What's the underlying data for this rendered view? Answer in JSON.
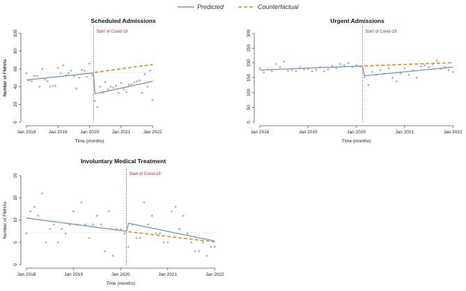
{
  "legend": {
    "predicted_label": "Predicted",
    "counterfactual_label": "Counterfactual"
  },
  "colors": {
    "predicted": "#6f9bc4",
    "counterfactual": "#e08a1e",
    "points": "#b5b5b5",
    "covid_line": "#c0392b",
    "reference": "#cccccc"
  },
  "chart_data": [
    {
      "type": "scatter",
      "title": "Scheduled Admissions",
      "xlabel": "Time (months)",
      "ylabel": "Number of FMHAs",
      "ylim": [
        0,
        100
      ],
      "yticks": [
        0,
        20,
        40,
        60,
        80,
        100
      ],
      "xlim": [
        0,
        49
      ],
      "xticks": [
        0,
        12,
        24,
        36,
        48
      ],
      "xtick_labels": [
        "Jan 2018",
        "Jan 2019",
        "Jan 2020",
        "Jan 2021",
        "Jan 2022"
      ],
      "covid_x": 26,
      "covid_label": "Start of Covid-19",
      "reference_y": 56,
      "points": [
        {
          "x": 0,
          "y": 55
        },
        {
          "x": 1,
          "y": 47
        },
        {
          "x": 2,
          "y": 46
        },
        {
          "x": 3,
          "y": 52
        },
        {
          "x": 4,
          "y": 52
        },
        {
          "x": 5,
          "y": 40
        },
        {
          "x": 6,
          "y": 60
        },
        {
          "x": 7,
          "y": 48
        },
        {
          "x": 8,
          "y": 46
        },
        {
          "x": 9,
          "y": 40
        },
        {
          "x": 10,
          "y": 41
        },
        {
          "x": 11,
          "y": 41
        },
        {
          "x": 12,
          "y": 61
        },
        {
          "x": 13,
          "y": 55
        },
        {
          "x": 14,
          "y": 64
        },
        {
          "x": 15,
          "y": 53
        },
        {
          "x": 16,
          "y": 55
        },
        {
          "x": 17,
          "y": 58
        },
        {
          "x": 18,
          "y": 52
        },
        {
          "x": 19,
          "y": 38
        },
        {
          "x": 20,
          "y": 50
        },
        {
          "x": 21,
          "y": 59
        },
        {
          "x": 22,
          "y": 58
        },
        {
          "x": 23,
          "y": 51
        },
        {
          "x": 24,
          "y": 66
        },
        {
          "x": 25,
          "y": 53
        },
        {
          "x": 26,
          "y": 24
        },
        {
          "x": 27,
          "y": 17
        },
        {
          "x": 28,
          "y": 40
        },
        {
          "x": 29,
          "y": 33
        },
        {
          "x": 30,
          "y": 45
        },
        {
          "x": 31,
          "y": 37
        },
        {
          "x": 32,
          "y": 40
        },
        {
          "x": 33,
          "y": 39
        },
        {
          "x": 34,
          "y": 41
        },
        {
          "x": 35,
          "y": 33
        },
        {
          "x": 36,
          "y": 44
        },
        {
          "x": 37,
          "y": 37
        },
        {
          "x": 38,
          "y": 34
        },
        {
          "x": 39,
          "y": 42
        },
        {
          "x": 40,
          "y": 43
        },
        {
          "x": 41,
          "y": 45
        },
        {
          "x": 42,
          "y": 46
        },
        {
          "x": 43,
          "y": 47
        },
        {
          "x": 44,
          "y": 33
        },
        {
          "x": 45,
          "y": 54
        },
        {
          "x": 46,
          "y": 40
        },
        {
          "x": 47,
          "y": 58
        },
        {
          "x": 48,
          "y": 25
        }
      ],
      "predicted_pre": [
        {
          "x": 0,
          "y": 47.5
        },
        {
          "x": 25.5,
          "y": 55.5
        }
      ],
      "predicted_post": [
        {
          "x": 26,
          "y": 32
        },
        {
          "x": 48,
          "y": 46
        }
      ],
      "counterfactual": [
        {
          "x": 26,
          "y": 56
        },
        {
          "x": 48,
          "y": 65
        }
      ]
    },
    {
      "type": "scatter",
      "title": "Urgent Admissions",
      "xlabel": "Time (months)",
      "ylabel": "Number of FMHAs",
      "ylim": [
        0,
        300
      ],
      "yticks": [
        0,
        50,
        100,
        150,
        200,
        250,
        300
      ],
      "xlim": [
        0,
        49
      ],
      "xticks": [
        0,
        12,
        24,
        36,
        48
      ],
      "xtick_labels": [
        "Jan 2018",
        "Jan 2019",
        "Jan 2020",
        "Jan 2021",
        "Jan 2022"
      ],
      "covid_x": 26,
      "covid_label": "Start of Covid-19",
      "reference_y": 188,
      "points": [
        {
          "x": 0,
          "y": 182
        },
        {
          "x": 1,
          "y": 168
        },
        {
          "x": 2,
          "y": 178
        },
        {
          "x": 3,
          "y": 172
        },
        {
          "x": 4,
          "y": 196
        },
        {
          "x": 5,
          "y": 186
        },
        {
          "x": 6,
          "y": 205
        },
        {
          "x": 7,
          "y": 174
        },
        {
          "x": 8,
          "y": 176
        },
        {
          "x": 9,
          "y": 172
        },
        {
          "x": 10,
          "y": 186
        },
        {
          "x": 11,
          "y": 178
        },
        {
          "x": 12,
          "y": 180
        },
        {
          "x": 13,
          "y": 172
        },
        {
          "x": 14,
          "y": 176
        },
        {
          "x": 15,
          "y": 186
        },
        {
          "x": 16,
          "y": 172
        },
        {
          "x": 17,
          "y": 178
        },
        {
          "x": 18,
          "y": 190
        },
        {
          "x": 19,
          "y": 182
        },
        {
          "x": 20,
          "y": 196
        },
        {
          "x": 21,
          "y": 192
        },
        {
          "x": 22,
          "y": 200
        },
        {
          "x": 23,
          "y": 186
        },
        {
          "x": 24,
          "y": 192
        },
        {
          "x": 25,
          "y": 188
        },
        {
          "x": 26,
          "y": 152
        },
        {
          "x": 27,
          "y": 125
        },
        {
          "x": 28,
          "y": 170
        },
        {
          "x": 29,
          "y": 160
        },
        {
          "x": 30,
          "y": 176
        },
        {
          "x": 31,
          "y": 164
        },
        {
          "x": 32,
          "y": 182
        },
        {
          "x": 33,
          "y": 150
        },
        {
          "x": 34,
          "y": 138
        },
        {
          "x": 35,
          "y": 165
        },
        {
          "x": 36,
          "y": 182
        },
        {
          "x": 37,
          "y": 160
        },
        {
          "x": 38,
          "y": 176
        },
        {
          "x": 39,
          "y": 150
        },
        {
          "x": 40,
          "y": 188
        },
        {
          "x": 41,
          "y": 192
        },
        {
          "x": 42,
          "y": 186
        },
        {
          "x": 43,
          "y": 196
        },
        {
          "x": 44,
          "y": 208
        },
        {
          "x": 45,
          "y": 180
        },
        {
          "x": 46,
          "y": 186
        },
        {
          "x": 47,
          "y": 176
        },
        {
          "x": 48,
          "y": 170
        }
      ],
      "predicted_pre": [
        {
          "x": 0,
          "y": 176
        },
        {
          "x": 25.5,
          "y": 190
        }
      ],
      "predicted_post": [
        {
          "x": 26,
          "y": 157
        },
        {
          "x": 48,
          "y": 186
        }
      ],
      "counterfactual": [
        {
          "x": 26,
          "y": 190
        },
        {
          "x": 48,
          "y": 201
        }
      ]
    },
    {
      "type": "scatter",
      "title": "Involuntary Medical Treatment",
      "xlabel": "Time (months)",
      "ylabel": "Number of FMHAs",
      "ylim": [
        0,
        20
      ],
      "yticks": [
        0,
        5,
        10,
        15,
        20
      ],
      "xlim": [
        0,
        49
      ],
      "xticks": [
        0,
        12,
        24,
        36,
        48
      ],
      "xtick_labels": [
        "Jan 2018",
        "Jan 2019",
        "Jan 2020",
        "Jan 2021",
        "Jan 2022"
      ],
      "covid_x": 26,
      "covid_label": "Start of Covid-19",
      "reference_y": 7.2,
      "points": [
        {
          "x": 0,
          "y": 7
        },
        {
          "x": 1,
          "y": 12
        },
        {
          "x": 2,
          "y": 13
        },
        {
          "x": 3,
          "y": 11
        },
        {
          "x": 4,
          "y": 16
        },
        {
          "x": 5,
          "y": 5
        },
        {
          "x": 6,
          "y": 8
        },
        {
          "x": 7,
          "y": 9
        },
        {
          "x": 8,
          "y": 5
        },
        {
          "x": 9,
          "y": 8
        },
        {
          "x": 10,
          "y": 7
        },
        {
          "x": 11,
          "y": 9
        },
        {
          "x": 12,
          "y": 12
        },
        {
          "x": 13,
          "y": 9
        },
        {
          "x": 14,
          "y": 14
        },
        {
          "x": 15,
          "y": 9
        },
        {
          "x": 16,
          "y": 6
        },
        {
          "x": 17,
          "y": 9
        },
        {
          "x": 18,
          "y": 11
        },
        {
          "x": 19,
          "y": 9
        },
        {
          "x": 20,
          "y": 3
        },
        {
          "x": 21,
          "y": 12
        },
        {
          "x": 22,
          "y": 2
        },
        {
          "x": 23,
          "y": 8
        },
        {
          "x": 24,
          "y": 8
        },
        {
          "x": 25,
          "y": 7
        },
        {
          "x": 26,
          "y": 4
        },
        {
          "x": 27,
          "y": 9
        },
        {
          "x": 28,
          "y": 6
        },
        {
          "x": 29,
          "y": 6
        },
        {
          "x": 30,
          "y": 14
        },
        {
          "x": 31,
          "y": 9
        },
        {
          "x": 32,
          "y": 11
        },
        {
          "x": 33,
          "y": 7
        },
        {
          "x": 34,
          "y": 7
        },
        {
          "x": 35,
          "y": 5
        },
        {
          "x": 36,
          "y": 5
        },
        {
          "x": 37,
          "y": 12
        },
        {
          "x": 38,
          "y": 13
        },
        {
          "x": 39,
          "y": 8
        },
        {
          "x": 40,
          "y": 11
        },
        {
          "x": 41,
          "y": 7
        },
        {
          "x": 42,
          "y": 5
        },
        {
          "x": 43,
          "y": 3
        },
        {
          "x": 44,
          "y": 3
        },
        {
          "x": 45,
          "y": 5
        },
        {
          "x": 46,
          "y": 2
        },
        {
          "x": 47,
          "y": 4
        },
        {
          "x": 48,
          "y": 4
        }
      ],
      "predicted_pre": [
        {
          "x": 0,
          "y": 10.5
        },
        {
          "x": 25.5,
          "y": 7.5
        }
      ],
      "predicted_post": [
        {
          "x": 26,
          "y": 9.3
        },
        {
          "x": 48,
          "y": 5.3
        }
      ],
      "counterfactual": [
        {
          "x": 26,
          "y": 7.4
        },
        {
          "x": 48,
          "y": 5.1
        }
      ]
    }
  ]
}
